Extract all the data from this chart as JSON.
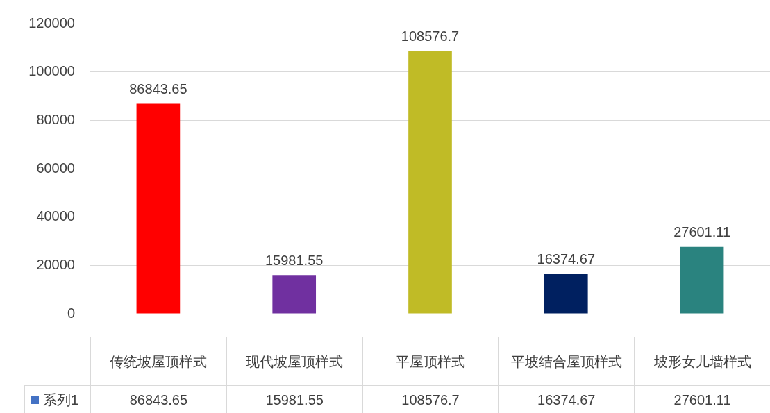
{
  "chart_data": {
    "type": "bar",
    "categories": [
      "传统坡屋顶样式",
      "现代坡屋顶样式",
      "平屋顶样式",
      "平坡结合屋顶样式",
      "坡形女儿墙样式"
    ],
    "series": [
      {
        "name": "系列1",
        "color": "#4472c4",
        "colors": [
          "#ff0000",
          "#7030a0",
          "#c0bb26",
          "#002060",
          "#2a837f"
        ],
        "values": [
          86843.65,
          15981.55,
          108576.7,
          16374.67,
          27601.11
        ]
      }
    ],
    "ylim": [
      0,
      120000
    ],
    "yticks": [
      0,
      20000,
      40000,
      60000,
      80000,
      100000,
      120000
    ],
    "annotations": [
      "86843.65",
      "15981.55",
      "108576.7",
      "16374.67",
      "27601.11"
    ],
    "grid": "y",
    "legend": "bottom",
    "data_labels": true
  }
}
